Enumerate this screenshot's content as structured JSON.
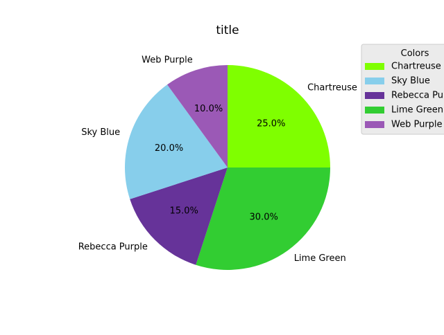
{
  "chart_data": {
    "type": "pie",
    "title": "title",
    "start_angle_deg": 90,
    "direction": "clockwise",
    "slices": [
      {
        "label": "Chartreuse",
        "value": 25.0,
        "pct_label": "25.0%",
        "color": "#7fff00"
      },
      {
        "label": "Lime Green",
        "value": 30.0,
        "pct_label": "30.0%",
        "color": "#32cd32"
      },
      {
        "label": "Rebecca Purple",
        "value": 15.0,
        "pct_label": "15.0%",
        "color": "#663399"
      },
      {
        "label": "Sky Blue",
        "value": 20.0,
        "pct_label": "20.0%",
        "color": "#87ceeb"
      },
      {
        "label": "Web Purple",
        "value": 10.0,
        "pct_label": "10.0%",
        "color": "#9b59b6"
      }
    ],
    "legend": {
      "title": "Colors",
      "placement": "top-right",
      "entries": [
        {
          "label": "Chartreuse",
          "color": "#7fff00"
        },
        {
          "label": "Sky Blue",
          "color": "#87ceeb"
        },
        {
          "label": "Rebecca Purple",
          "color": "#663399"
        },
        {
          "label": "Lime Green",
          "color": "#32cd32"
        },
        {
          "label": "Web Purple",
          "color": "#9b59b6"
        }
      ]
    }
  }
}
